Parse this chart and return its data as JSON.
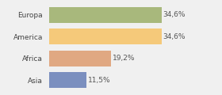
{
  "categories": [
    "Europa",
    "America",
    "Africa",
    "Asia"
  ],
  "values": [
    34.6,
    34.6,
    19.2,
    11.5
  ],
  "labels": [
    "34,6%",
    "34,6%",
    "19,2%",
    "11,5%"
  ],
  "bar_colors": [
    "#a8b87c",
    "#f5c97a",
    "#e0a882",
    "#7b8fbf"
  ],
  "background_color": "#f0f0f0",
  "xlim": [
    0,
    45
  ],
  "label_fontsize": 6.5,
  "tick_fontsize": 6.5,
  "bar_height": 0.72,
  "figsize": [
    2.8,
    1.2
  ],
  "dpi": 100
}
